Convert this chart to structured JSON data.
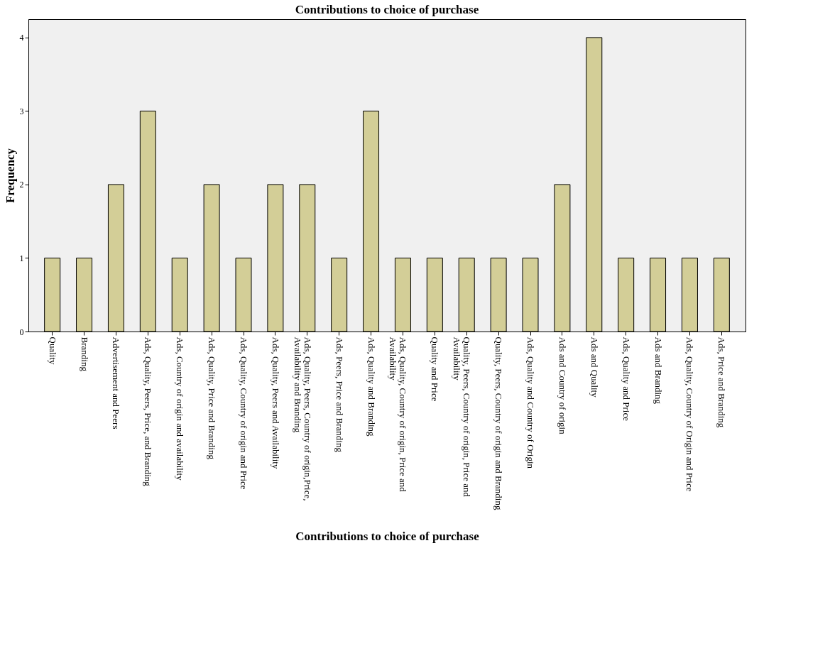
{
  "chart_data": {
    "type": "bar",
    "title": "Contributions to choice of purchase",
    "xlabel": "Contributions to choice of purchase",
    "ylabel": "Frequency",
    "categories": [
      "Quality",
      "Branding",
      "Advertisement and Peers",
      "Ads, Quality, Peers, Price, and Branding",
      "Ads, Country of origin and availability",
      "Ads, Quality, Price and Branding",
      "Ads, Quality, Country of origin and Price",
      "Ads, Quality, Peers and Availability",
      "Ads, Quality, Peers, Country of origin,Price, Availability and Branding",
      "Ads, Peers, Price and Branding",
      "Ads, Quality and Branding",
      "Ads, Quality, Country of origin, Price and Availability",
      "Quality and Price",
      "Quality, Peers, Country of origin, Price and Availability",
      "Quality, Peers, Country of origin and Branding",
      "Ads, Quality and Country of Origin",
      "Ads and Country of origin",
      "Ads and Quality",
      "Ads, Quality and Price",
      "Ads and Branding",
      "Ads, Quality, Country of Origin and Price",
      "Ads, Price and Branding"
    ],
    "values": [
      1,
      1,
      2,
      3,
      1,
      2,
      1,
      2,
      2,
      1,
      3,
      1,
      1,
      1,
      1,
      1,
      2,
      4,
      1,
      1,
      1,
      1
    ],
    "color": "#d3ce97",
    "ylim": [
      0,
      4.25
    ],
    "yticks": [
      0,
      1,
      2,
      3,
      4
    ],
    "grid": false
  }
}
